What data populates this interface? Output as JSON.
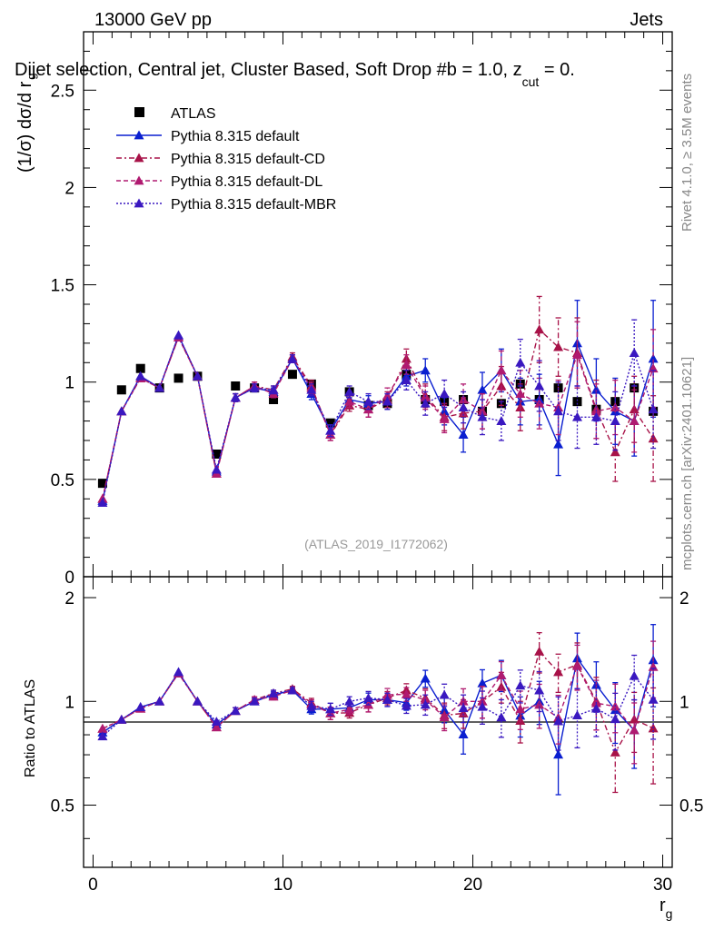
{
  "header": {
    "left": "13000 GeV pp",
    "right": "Jets",
    "title_main": "Dijet selection, Central jet, Cluster Based, Soft Drop #b = 1.0, z",
    "title_sub": "cut",
    "title_end": " = 0.",
    "ylabel_main": "(1/σ) dσ/d r",
    "ylabel_sub": "g",
    "ratio_ylabel": "Ratio to ATLAS",
    "xlabel_main": "r",
    "xlabel_sub": "g",
    "side_rivet": "Rivet 4.1.0, ≥ 3.5M events",
    "side_mcplots": "mcplots.cern.ch [arXiv:2401.10621]",
    "analysis_id": "(ATLAS_2019_I1772062)"
  },
  "chart_data": {
    "type": "scatter",
    "x": [
      0.5,
      1.5,
      2.5,
      3.5,
      4.5,
      5.5,
      6.5,
      7.5,
      8.5,
      9.5,
      10.5,
      11.5,
      12.5,
      13.5,
      14.5,
      15.5,
      16.5,
      17.5,
      18.5,
      19.5,
      20.5,
      21.5,
      22.5,
      23.5,
      24.5,
      25.5,
      26.5,
      27.5,
      28.5,
      29.5
    ],
    "xlim": [
      -0.5,
      30.5
    ],
    "ylim_main": [
      0,
      2.8
    ],
    "ylim_ratio": [
      0.33,
      2.3
    ],
    "xticks": [
      0,
      10,
      20,
      30
    ],
    "yticks_main": [
      0.5,
      1,
      1.5,
      2,
      2.5
    ],
    "yticks_main_bottom": "0",
    "yticks_ratio": [
      0.5,
      1,
      2
    ],
    "series": [
      {
        "name": "ATLAS",
        "color": "#000000",
        "marker": "square",
        "values": [
          0.48,
          0.96,
          1.07,
          0.97,
          1.02,
          1.03,
          0.63,
          0.98,
          0.97,
          0.91,
          1.04,
          0.99,
          0.79,
          0.95,
          0.88,
          0.89,
          1.04,
          0.91,
          0.9,
          0.91,
          0.85,
          0.89,
          0.99,
          0.91,
          0.97,
          0.9,
          0.86,
          0.9,
          0.97,
          0.85
        ],
        "errors": [
          0.01,
          0.01,
          0.01,
          0.01,
          0.01,
          0.01,
          0.01,
          0.01,
          0.01,
          0.01,
          0.01,
          0.01,
          0.01,
          0.01,
          0.01,
          0.01,
          0.01,
          0.01,
          0.01,
          0.01,
          0.01,
          0.01,
          0.01,
          0.01,
          0.01,
          0.01,
          0.01,
          0.01,
          0.01,
          0.01
        ]
      },
      {
        "name": "Pythia 8.315 default",
        "color": "#0a1fd0",
        "dash": "solid",
        "values": [
          0.39,
          0.85,
          1.03,
          0.97,
          1.24,
          1.03,
          0.54,
          0.92,
          0.97,
          0.95,
          1.12,
          0.94,
          0.75,
          0.91,
          0.89,
          0.9,
          1.03,
          1.06,
          0.85,
          0.73,
          0.96,
          1.06,
          0.9,
          0.91,
          0.68,
          1.2,
          0.96,
          0.85,
          0.8,
          1.12
        ],
        "errors": [
          0.01,
          0.01,
          0.01,
          0.01,
          0.01,
          0.01,
          0.01,
          0.02,
          0.02,
          0.02,
          0.02,
          0.03,
          0.03,
          0.03,
          0.04,
          0.04,
          0.05,
          0.06,
          0.07,
          0.09,
          0.09,
          0.11,
          0.12,
          0.13,
          0.16,
          0.22,
          0.16,
          0.17,
          0.18,
          0.3
        ]
      },
      {
        "name": "Pythia 8.315 default-CD",
        "color": "#a81248",
        "dash": "6,3,2,3",
        "values": [
          0.4,
          0.85,
          1.02,
          0.97,
          1.23,
          1.03,
          0.53,
          0.92,
          0.98,
          0.96,
          1.13,
          0.98,
          0.73,
          0.88,
          0.86,
          0.91,
          1.12,
          0.93,
          0.82,
          0.84,
          0.85,
          0.98,
          0.87,
          1.27,
          1.18,
          1.15,
          0.86,
          0.64,
          0.86,
          0.71
        ],
        "errors": [
          0.01,
          0.01,
          0.01,
          0.01,
          0.01,
          0.01,
          0.01,
          0.02,
          0.02,
          0.02,
          0.02,
          0.03,
          0.03,
          0.03,
          0.04,
          0.04,
          0.05,
          0.06,
          0.07,
          0.08,
          0.09,
          0.1,
          0.12,
          0.17,
          0.15,
          0.18,
          0.15,
          0.15,
          0.17,
          0.22
        ]
      },
      {
        "name": "Pythia 8.315 default-DL",
        "color": "#b01a70",
        "dash": "5,3",
        "values": [
          0.4,
          0.85,
          1.02,
          0.97,
          1.23,
          1.03,
          0.53,
          0.92,
          0.98,
          0.94,
          1.12,
          0.97,
          0.73,
          0.9,
          0.86,
          0.93,
          1.09,
          0.92,
          0.81,
          0.91,
          0.85,
          1.06,
          0.94,
          0.89,
          0.87,
          1.14,
          0.85,
          0.87,
          0.8,
          1.07
        ],
        "errors": [
          0.01,
          0.01,
          0.01,
          0.01,
          0.01,
          0.01,
          0.01,
          0.02,
          0.02,
          0.02,
          0.02,
          0.03,
          0.03,
          0.03,
          0.04,
          0.04,
          0.05,
          0.06,
          0.07,
          0.08,
          0.09,
          0.1,
          0.12,
          0.13,
          0.14,
          0.17,
          0.14,
          0.14,
          0.16,
          0.2
        ]
      },
      {
        "name": "Pythia 8.315 default-MBR",
        "color": "#3a18c0",
        "dash": "2,2",
        "values": [
          0.38,
          0.85,
          1.03,
          0.97,
          1.24,
          1.03,
          0.55,
          0.92,
          0.97,
          0.96,
          1.12,
          0.96,
          0.75,
          0.95,
          0.9,
          0.9,
          1.01,
          0.89,
          0.94,
          0.87,
          0.82,
          0.8,
          1.1,
          0.98,
          0.85,
          0.82,
          0.82,
          0.8,
          1.15,
          0.86
        ],
        "errors": [
          0.01,
          0.01,
          0.01,
          0.01,
          0.01,
          0.01,
          0.01,
          0.02,
          0.02,
          0.02,
          0.02,
          0.03,
          0.03,
          0.03,
          0.04,
          0.04,
          0.05,
          0.06,
          0.07,
          0.08,
          0.09,
          0.1,
          0.12,
          0.13,
          0.15,
          0.16,
          0.14,
          0.15,
          0.17,
          0.2
        ]
      }
    ]
  }
}
